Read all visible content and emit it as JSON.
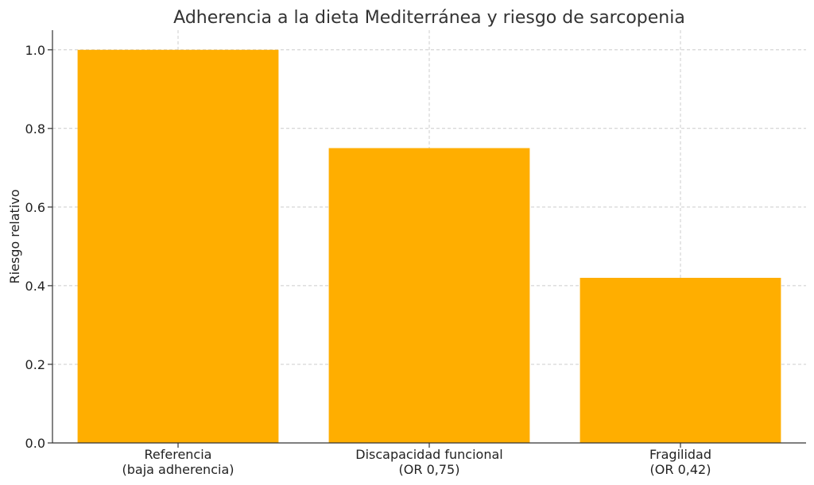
{
  "chart_data": {
    "type": "bar",
    "title": "Adherencia a la dieta Mediterránea y riesgo de sarcopenia",
    "xlabel": "",
    "ylabel": "Riesgo relativo",
    "categories": [
      [
        "Referencia",
        "(baja adherencia)"
      ],
      [
        "Discapacidad funcional",
        "(OR 0,75)"
      ],
      [
        "Fragilidad",
        "(OR 0,42)"
      ]
    ],
    "values": [
      1.0,
      0.75,
      0.42
    ],
    "ylim": [
      0,
      1.05
    ],
    "yticks": [
      "0.0",
      "0.2",
      "0.4",
      "0.6",
      "0.8",
      "1.0"
    ],
    "ytick_values": [
      0,
      0.2,
      0.4,
      0.6,
      0.8,
      1.0
    ],
    "grid": true,
    "bar_color": "#FFAE00"
  }
}
